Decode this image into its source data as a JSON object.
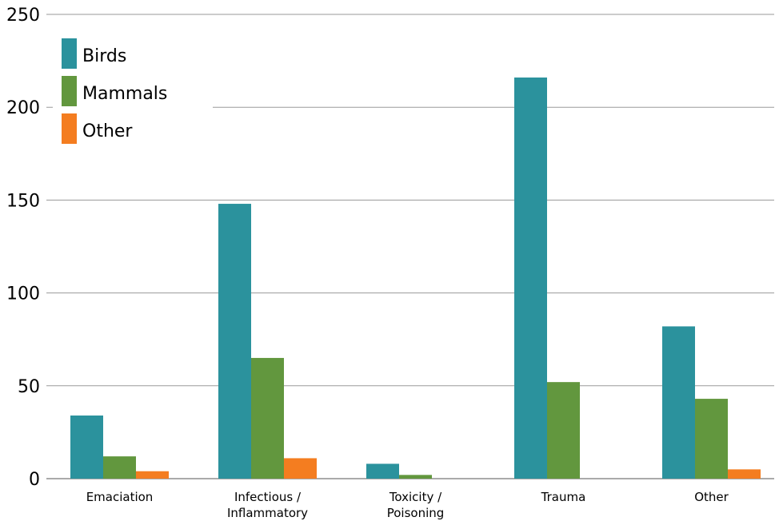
{
  "chart_data": {
    "type": "bar",
    "categories": [
      [
        "Emaciation"
      ],
      [
        "Infectious /",
        "Inflammatory"
      ],
      [
        "Toxicity /",
        "Poisoning"
      ],
      [
        "Trauma"
      ],
      [
        "Other"
      ]
    ],
    "series": [
      {
        "name": "Birds",
        "values": [
          34,
          148,
          8,
          216,
          82
        ]
      },
      {
        "name": "Mammals",
        "values": [
          12,
          65,
          2,
          52,
          43
        ]
      },
      {
        "name": "Other",
        "values": [
          4,
          11,
          0,
          0,
          5
        ]
      }
    ],
    "yticks": [
      0,
      50,
      100,
      150,
      200,
      250
    ],
    "ylim": [
      0,
      250
    ],
    "grid": true,
    "legend_position": "top-left",
    "title": "",
    "xlabel": "",
    "ylabel": ""
  },
  "colors": {
    "Birds": "#2b929d",
    "Mammals": "#62973e",
    "Other": "#f47d20",
    "grid": "#9a9a9a",
    "axis": "#555555"
  }
}
